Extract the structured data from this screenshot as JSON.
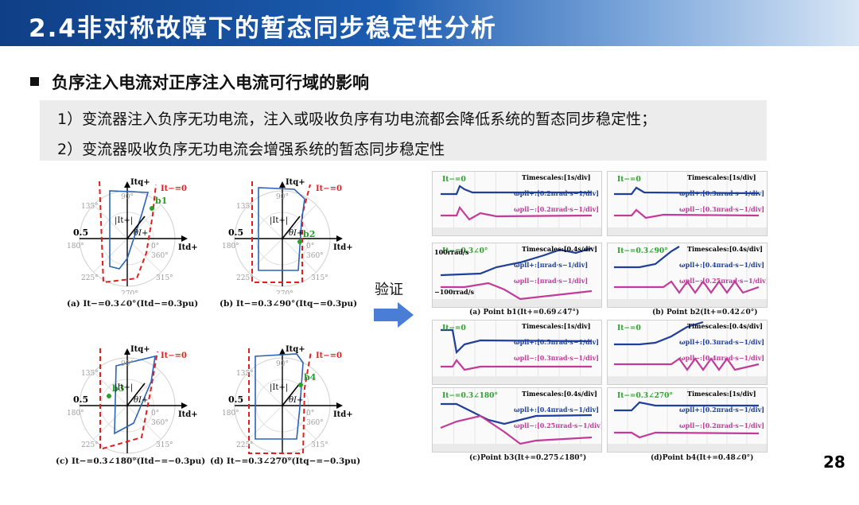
{
  "header": {
    "title": "2.4非对称故障下的暂态同步稳定性分析"
  },
  "section": {
    "title": "负序注入电流对正序注入电流可行域的影响"
  },
  "points": [
    "1）变流器注入负序无功电流，注入或吸收负序有功电流都会降低系统的暂态同步稳定性；",
    "2）变流器吸收负序无功电流会增强系统的暂态同步稳定性"
  ],
  "verify_label": "验证",
  "page_number": "28",
  "colors": {
    "accent_red": "#e02020",
    "curve_blue": "#2b63b8",
    "wave_blue": "#1f3f9a",
    "wave_pink": "#c23b9a",
    "header_dark": "#0f3f86"
  },
  "polar_plots": [
    {
      "caption": "(a) It−=0.3∠0°(Itd−=0.3pu)",
      "point": "b1",
      "condition": "It−=0"
    },
    {
      "caption": "(b) It−=0.3∠90°(Itq−=0.3pu)",
      "point": "b2",
      "condition": "It−=0"
    },
    {
      "caption": "(c) It−=0.3∠180°(Itd−=−0.3pu)",
      "point": "b3",
      "condition": "It−=0"
    },
    {
      "caption": "(d) It−=0.3∠270°(Itq−=−0.3pu)",
      "point": "b4",
      "condition": "It−=0"
    }
  ],
  "polar_labels": {
    "axis_q": "Itq+",
    "axis_d": "Itd+",
    "vec": "|It+|",
    "theta": "θI+",
    "radius": "0.5",
    "angles": [
      "90°",
      "135°",
      "180°",
      "225°",
      "270°",
      "315°",
      "0°",
      "360°"
    ]
  },
  "waveforms": [
    {
      "caption": "(a) Point b1(It+=0.69∠47°)",
      "cond_top": "It−=0",
      "timescale": "Timescales:[1s/div]",
      "scale1": "ωpll+:[0.2πrad·s−1/div]",
      "scale2": "ωpll−:[0.2πrad·s−1/div]",
      "time_label": ""
    },
    {
      "caption": "(b) Point b2(It+=0.42∠0°)",
      "cond_top": "It−=0",
      "timescale": "Timescales:[1s/div]",
      "scale1": "ωpll+:[0.3πrad·s−1/div]",
      "scale2": "ωpll−:[0.3πrad·s−1/div]",
      "time_label": ""
    },
    {
      "caption": "",
      "cond_top": "It−=0.3∠0°",
      "timescale": "Timescales:[0.4s/div]",
      "scale1": "ωpll+:[πrad·s−1/div]",
      "scale2": "ωpll−:[πrad·s−1/div]",
      "extra1": "100rrad/s",
      "extra2": "−100rrad/s"
    },
    {
      "caption": "",
      "cond_top": "It−=0.3∠90°",
      "timescale": "Timescales:[0.4s/div]",
      "scale1": "ωpll+:[0.4πrad·s−1/div]",
      "scale2": "ωpll−:[0.25πrad·s−1/div]"
    },
    {
      "caption": "",
      "cond_top": "It−=0",
      "timescale": "Timescales:[1s/div]",
      "scale1": "ωpll+:[0.5πrad·s−1/div]",
      "scale2": "ωpll−:[0.3πrad·s−1/div]"
    },
    {
      "caption": "",
      "cond_top": "It−=0",
      "timescale": "Timescales:[0.4s/div]",
      "scale1": "ωpll+:[0.3πrad·s−1/div]",
      "scale2": "ωpll−:[0.4πrad·s−1/div]"
    },
    {
      "caption": "(c)Point b3(It+=0.275∠180°)",
      "cond_top": "It−=0.3∠180°",
      "timescale": "Timescales:[0.4s/div]",
      "scale1": "ωpll+:[0.4πrad·s−1/div]",
      "scale2": "ωpll−:[0.25πrad·s−1/div]"
    },
    {
      "caption": "(d)Point b4(It+=0.48∠0°)",
      "cond_top": "It−=0.3∠270°",
      "timescale": "Timescales:[1s/div]",
      "scale1": "ωpll+:[0.2πrad·s−1/div]",
      "scale2": "ωpll−:[0.2πrad·s−1/div]"
    }
  ]
}
